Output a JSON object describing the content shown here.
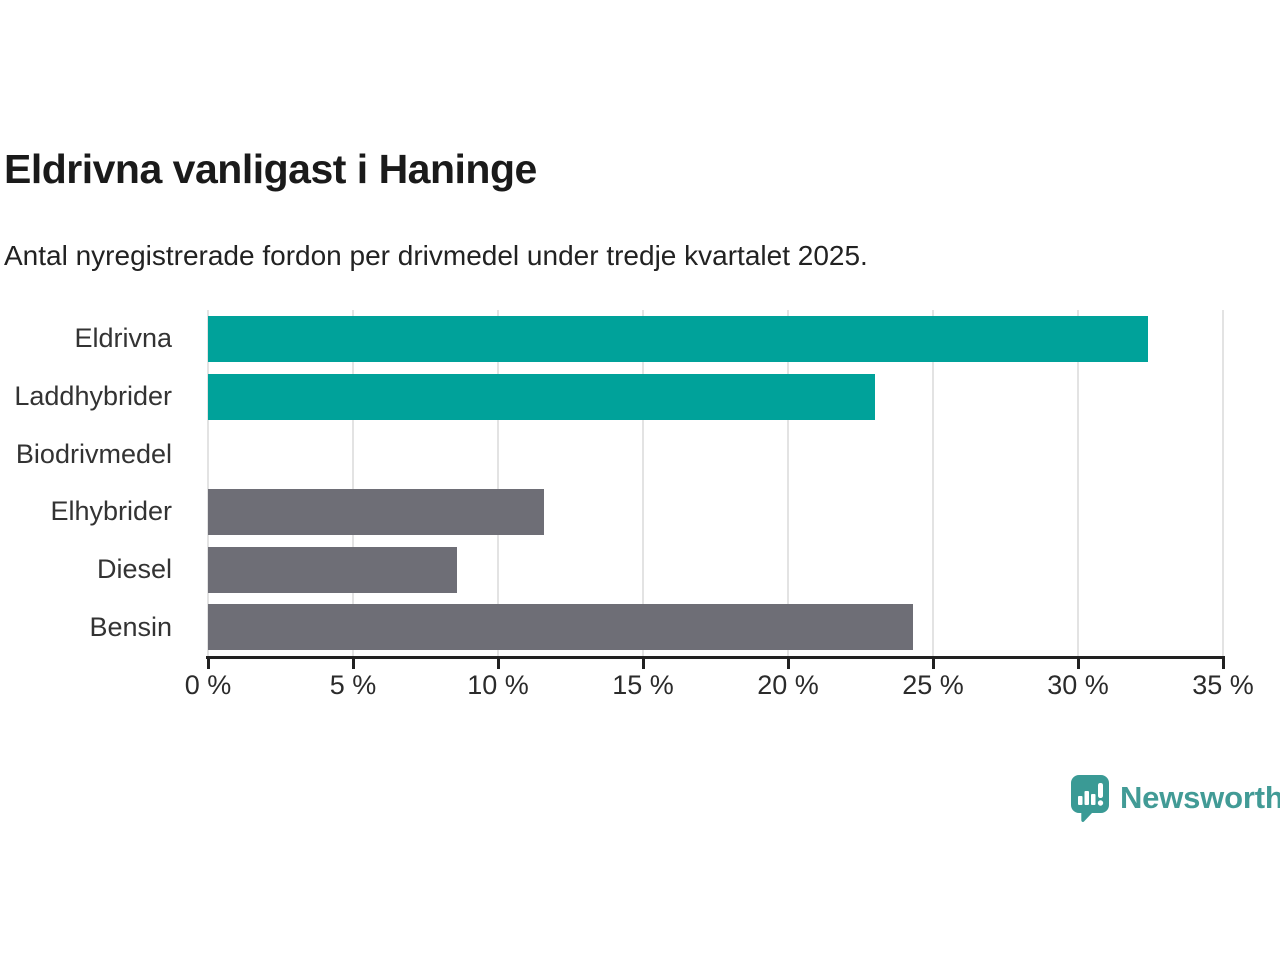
{
  "header": {
    "title": "Eldrivna vanligast i Haninge",
    "subtitle": "Antal nyregistrerade fordon per drivmedel under tredje kvartalet 2025."
  },
  "chart_data": {
    "type": "bar",
    "orientation": "horizontal",
    "title": "Eldrivna vanligast i Haninge",
    "subtitle": "Antal nyregistrerade fordon per drivmedel under tredje kvartalet 2025.",
    "categories": [
      "Eldrivna",
      "Laddhybrider",
      "Biodrivmedel",
      "Elhybrider",
      "Diesel",
      "Bensin"
    ],
    "values": [
      32.4,
      23.0,
      0,
      11.6,
      8.6,
      24.3
    ],
    "unit": "%",
    "xlim": [
      0,
      35
    ],
    "x_ticks": [
      0,
      5,
      10,
      15,
      20,
      25,
      30,
      35
    ],
    "x_tick_suffix": " %",
    "grid": "vertical-light-behind-bars",
    "legend": "none",
    "bar_colors": [
      "#00a29a",
      "#00a29a",
      "#6e6e76",
      "#6e6e76",
      "#6e6e76",
      "#6e6e76"
    ],
    "accent_color": "#00a29a",
    "muted_color": "#6e6e76"
  },
  "footer": {
    "brand": "Newsworthy",
    "brand_color": "#429b96",
    "logo_icon": "newsworthy-speech-bubble-chart-icon"
  }
}
